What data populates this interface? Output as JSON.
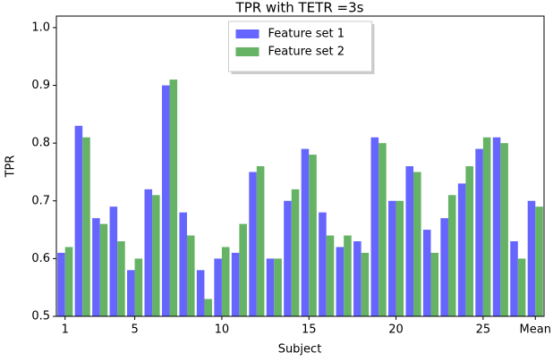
{
  "chart_data": {
    "type": "bar",
    "title": "TPR with TETR =3s",
    "x_label": "Subject",
    "y_label": "TPR",
    "categories": [
      "1",
      null,
      null,
      null,
      "5",
      null,
      null,
      null,
      null,
      "10",
      null,
      null,
      null,
      null,
      "15",
      null,
      null,
      null,
      null,
      "20",
      null,
      null,
      null,
      null,
      "25",
      null,
      null,
      "Mean"
    ],
    "series": [
      {
        "name": "Feature set 1",
        "color": "#6666ff",
        "values": [
          0.61,
          0.83,
          0.67,
          0.69,
          0.58,
          0.72,
          0.9,
          0.68,
          0.58,
          0.6,
          0.61,
          0.75,
          0.6,
          0.7,
          0.79,
          0.68,
          0.62,
          0.63,
          0.81,
          0.7,
          0.76,
          0.65,
          0.67,
          0.73,
          0.79,
          0.81,
          0.63,
          0.7
        ]
      },
      {
        "name": "Feature set 2",
        "color": "#66b366",
        "values": [
          0.62,
          0.81,
          0.66,
          0.63,
          0.6,
          0.71,
          0.91,
          0.64,
          0.53,
          0.62,
          0.66,
          0.76,
          0.6,
          0.72,
          0.78,
          0.64,
          0.64,
          0.61,
          0.8,
          0.7,
          0.75,
          0.61,
          0.71,
          0.76,
          0.81,
          0.8,
          0.6,
          0.69
        ]
      }
    ],
    "ylim": [
      0.5,
      1.02
    ],
    "yticks": [
      0.5,
      0.6,
      0.7,
      0.8,
      0.9,
      {
        "value": 1,
        "label": "1.0"
      }
    ],
    "legend": "upper center"
  }
}
